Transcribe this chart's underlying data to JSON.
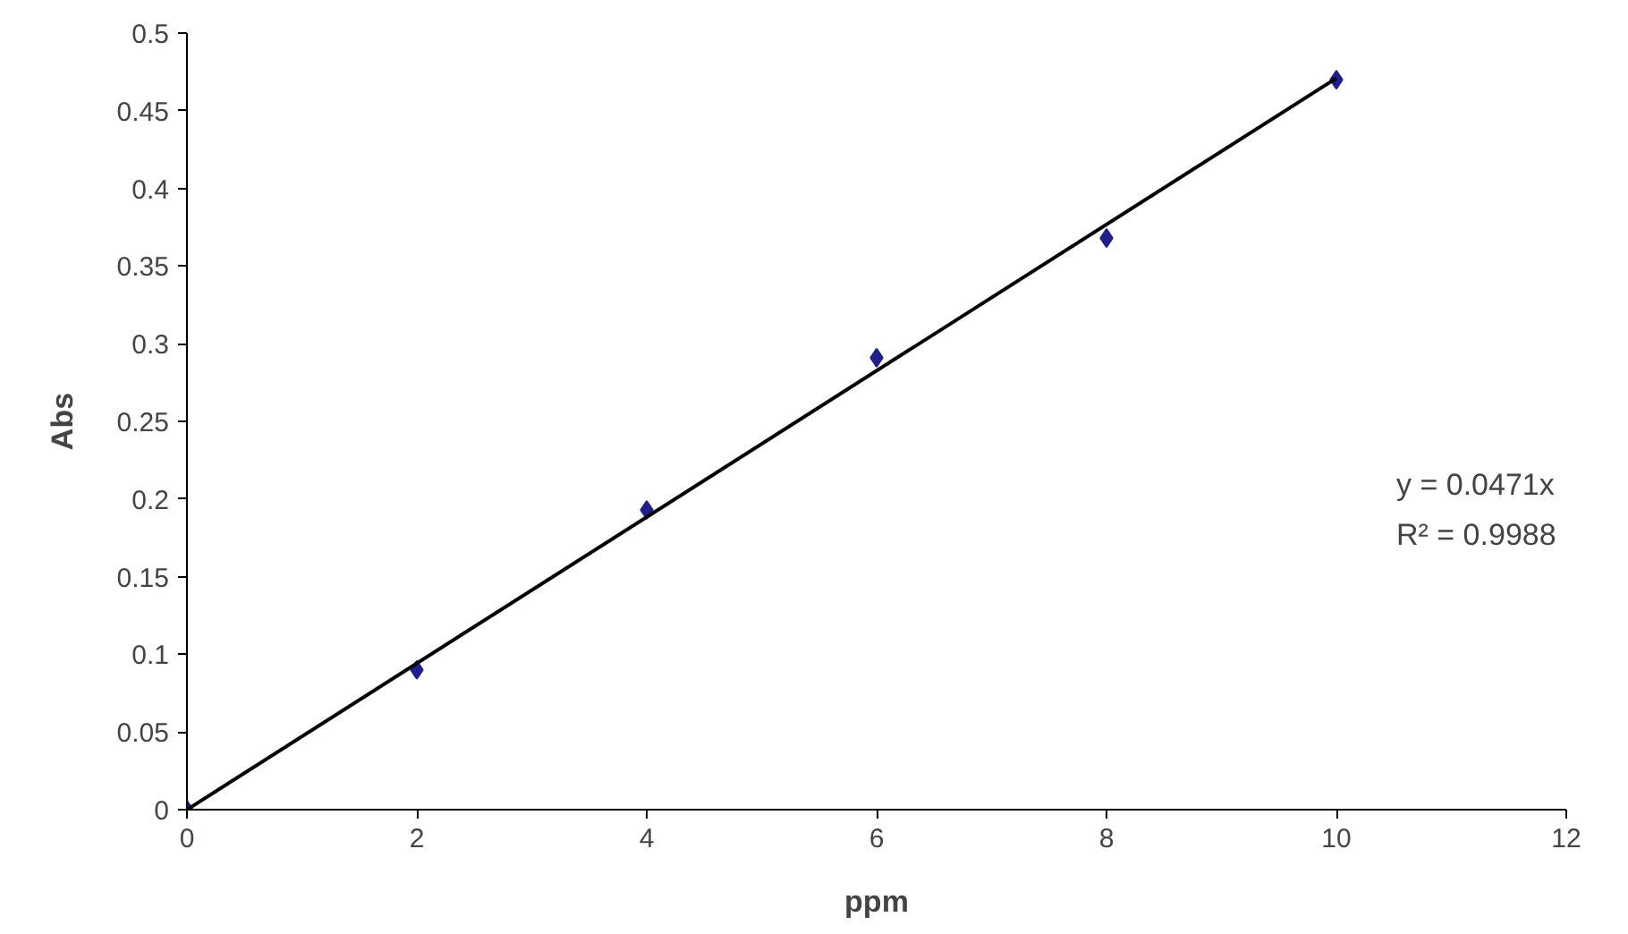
{
  "chart_data": {
    "type": "scatter",
    "xlabel": "ppm",
    "ylabel": "Abs",
    "x": [
      0,
      2,
      4,
      6,
      8,
      10
    ],
    "series": [
      {
        "color": "#1f1f8c",
        "marker": "diamond",
        "values": [
          0,
          0.09,
          0.193,
          0.291,
          0.368,
          0.47
        ]
      },
      {
        "type": "line",
        "color": "#000000",
        "x": [
          0,
          10
        ],
        "values": [
          0,
          0.471
        ]
      }
    ],
    "xlim": [
      0,
      12
    ],
    "xticks": [
      0,
      2,
      4,
      6,
      8,
      10,
      12
    ],
    "ylim": [
      0,
      0.5
    ],
    "yticks": [
      0,
      0.05,
      0.1,
      0.15,
      0.2,
      0.25,
      0.3,
      0.35,
      0.4,
      0.45,
      0.5
    ],
    "annotations": [
      "y = 0.0471x",
      "R² = 0.9988"
    ],
    "grid": false
  }
}
